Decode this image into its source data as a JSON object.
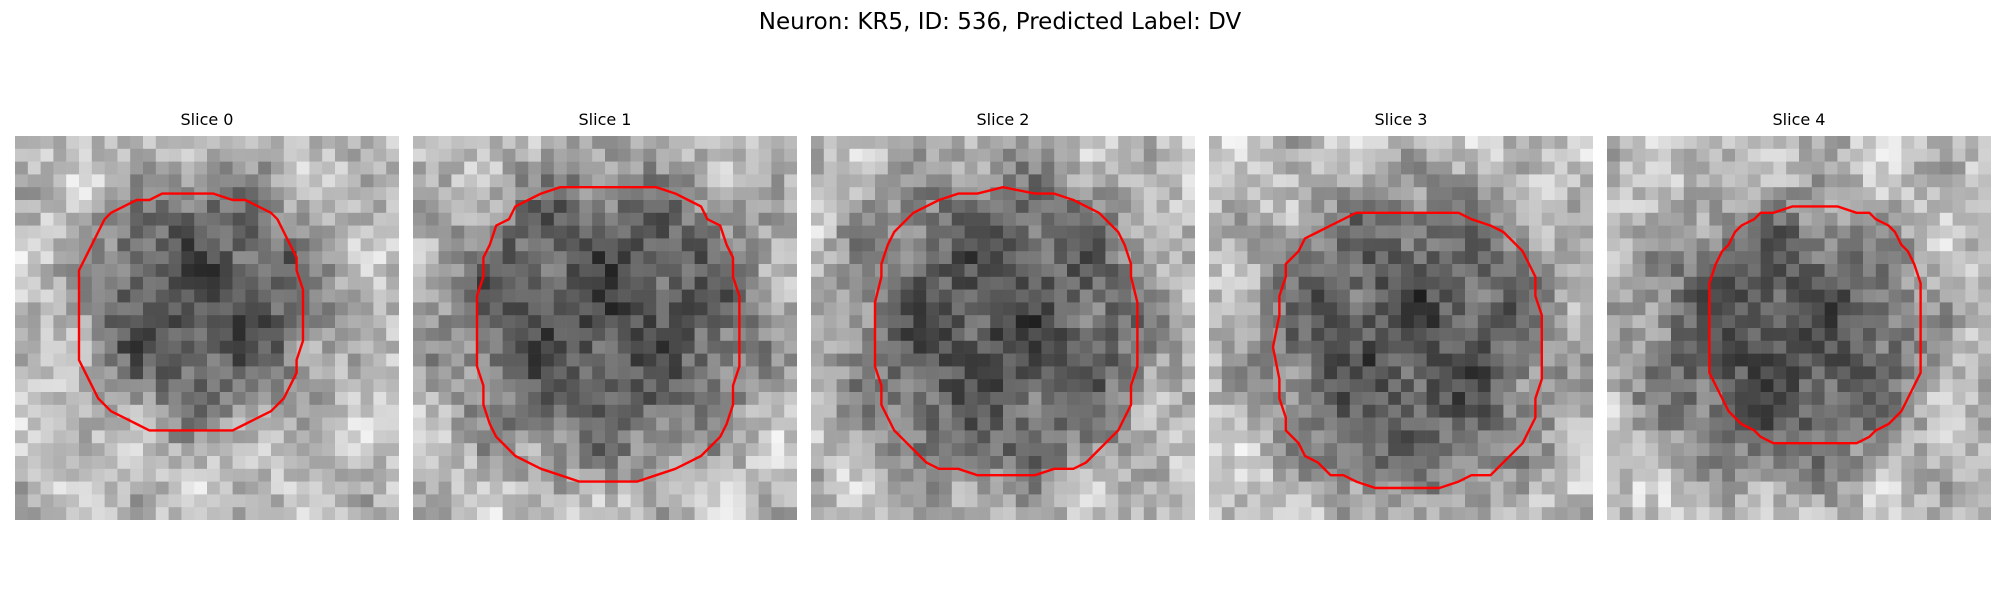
{
  "figure": {
    "title": "Neuron: KR5, ID: 536, Predicted Label: DV"
  },
  "slices": [
    {
      "title": "Slice 0"
    },
    {
      "title": "Slice 1"
    },
    {
      "title": "Slice 2"
    },
    {
      "title": "Slice 3"
    },
    {
      "title": "Slice 4"
    }
  ],
  "colors": {
    "contour": "#ff0000"
  }
}
